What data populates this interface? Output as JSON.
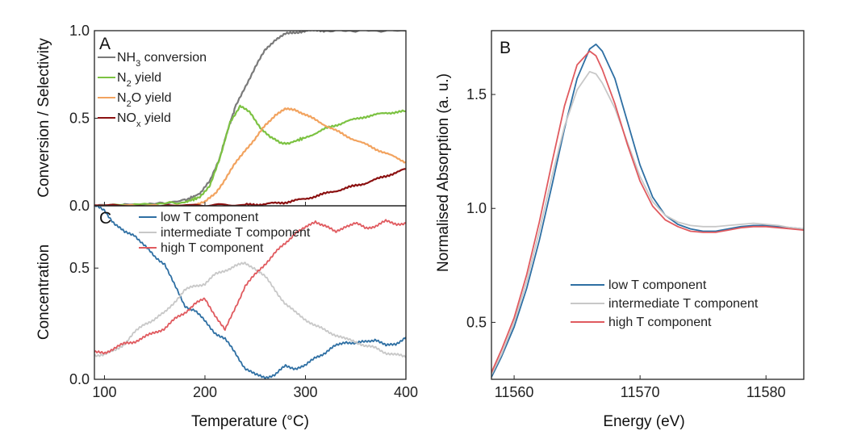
{
  "chart_data": [
    {
      "panel": "A",
      "type": "line",
      "xlabel": "Temperature (°C)",
      "ylabel": "Conversion / Selectivity",
      "xlim": [
        90,
        400
      ],
      "ylim": [
        0,
        1.0
      ],
      "yticks": [
        "0.0",
        "0.5",
        "1.0"
      ],
      "legend_position": "top-left",
      "series": [
        {
          "name": "NH3 conversion",
          "name_base": "NH",
          "name_sub": "3",
          "name_rest": " conversion",
          "color": "#7a7a7a",
          "x": [
            90,
            150,
            180,
            195,
            205,
            215,
            222,
            230,
            240,
            250,
            260,
            270,
            280,
            290,
            300,
            320,
            350,
            400
          ],
          "y": [
            0.0,
            0.01,
            0.03,
            0.07,
            0.14,
            0.28,
            0.42,
            0.56,
            0.68,
            0.79,
            0.89,
            0.95,
            0.98,
            0.99,
            1.0,
            1.0,
            1.0,
            1.0
          ]
        },
        {
          "name": "N2 yield",
          "name_base": "N",
          "name_sub": "2",
          "name_rest": " yield",
          "color": "#7cc242",
          "x": [
            90,
            150,
            180,
            195,
            205,
            215,
            225,
            235,
            245,
            255,
            265,
            275,
            285,
            300,
            320,
            340,
            360,
            380,
            400
          ],
          "y": [
            0.0,
            0.01,
            0.02,
            0.05,
            0.12,
            0.27,
            0.48,
            0.57,
            0.53,
            0.45,
            0.39,
            0.36,
            0.36,
            0.39,
            0.44,
            0.48,
            0.51,
            0.53,
            0.54
          ]
        },
        {
          "name": "N2O yield",
          "name_base": "N",
          "name_sub": "2",
          "name_rest": "O yield",
          "color": "#f2a35f",
          "x": [
            90,
            180,
            200,
            210,
            220,
            230,
            240,
            250,
            260,
            270,
            280,
            290,
            300,
            320,
            340,
            360,
            380,
            400
          ],
          "y": [
            0.0,
            0.0,
            0.02,
            0.07,
            0.15,
            0.24,
            0.32,
            0.38,
            0.46,
            0.52,
            0.55,
            0.55,
            0.52,
            0.46,
            0.4,
            0.35,
            0.3,
            0.25
          ]
        },
        {
          "name": "NOx yield",
          "name_base": "NO",
          "name_sub": "x",
          "name_rest": " yield",
          "color": "#8b1010",
          "x": [
            90,
            200,
            240,
            260,
            280,
            300,
            320,
            340,
            360,
            380,
            400
          ],
          "y": [
            0.0,
            0.0,
            0.005,
            0.01,
            0.02,
            0.04,
            0.07,
            0.1,
            0.13,
            0.17,
            0.21
          ]
        }
      ]
    },
    {
      "panel": "C",
      "type": "line",
      "xlabel": "Temperature (°C)",
      "ylabel": "Concentration",
      "xlim": [
        90,
        400
      ],
      "ylim": [
        0,
        0.78
      ],
      "yticks": [
        "0.0",
        "0.5"
      ],
      "xticks": [
        "100",
        "200",
        "300",
        "400"
      ],
      "legend_position": "top-center",
      "series": [
        {
          "name": "low T component",
          "color": "#2e6fa3",
          "x": [
            90,
            100,
            110,
            120,
            130,
            140,
            150,
            160,
            170,
            180,
            190,
            200,
            210,
            220,
            230,
            240,
            250,
            260,
            270,
            280,
            290,
            300,
            310,
            320,
            330,
            340,
            350,
            360,
            370,
            380,
            390,
            400
          ],
          "y": [
            0.78,
            0.76,
            0.7,
            0.66,
            0.65,
            0.6,
            0.55,
            0.52,
            0.42,
            0.33,
            0.31,
            0.26,
            0.21,
            0.18,
            0.12,
            0.05,
            0.02,
            0.01,
            0.02,
            0.06,
            0.05,
            0.06,
            0.1,
            0.12,
            0.15,
            0.17,
            0.16,
            0.17,
            0.18,
            0.15,
            0.16,
            0.19
          ]
        },
        {
          "name": "intermediate T component",
          "color": "#c8c8c8",
          "x": [
            90,
            100,
            110,
            120,
            130,
            140,
            150,
            160,
            170,
            180,
            190,
            200,
            210,
            220,
            230,
            240,
            250,
            260,
            270,
            280,
            290,
            300,
            310,
            320,
            330,
            340,
            350,
            360,
            370,
            380,
            390,
            400
          ],
          "y": [
            0.11,
            0.11,
            0.13,
            0.16,
            0.21,
            0.25,
            0.27,
            0.3,
            0.35,
            0.4,
            0.42,
            0.43,
            0.47,
            0.49,
            0.51,
            0.52,
            0.5,
            0.46,
            0.4,
            0.34,
            0.3,
            0.27,
            0.24,
            0.22,
            0.2,
            0.18,
            0.17,
            0.15,
            0.14,
            0.12,
            0.11,
            0.1
          ]
        },
        {
          "name": "high T component",
          "color": "#e05a5f",
          "x": [
            90,
            100,
            110,
            120,
            130,
            140,
            150,
            160,
            170,
            180,
            190,
            200,
            210,
            220,
            230,
            240,
            250,
            260,
            270,
            280,
            290,
            300,
            310,
            320,
            330,
            340,
            350,
            360,
            370,
            380,
            390,
            400
          ],
          "y": [
            0.12,
            0.12,
            0.14,
            0.16,
            0.17,
            0.19,
            0.21,
            0.23,
            0.27,
            0.3,
            0.34,
            0.36,
            0.29,
            0.22,
            0.32,
            0.42,
            0.47,
            0.52,
            0.57,
            0.61,
            0.66,
            0.68,
            0.71,
            0.69,
            0.66,
            0.69,
            0.7,
            0.68,
            0.69,
            0.71,
            0.7,
            0.7
          ]
        }
      ]
    },
    {
      "panel": "B",
      "type": "line",
      "xlabel": "Energy (eV)",
      "ylabel": "Normalised Absorption (a. u.)",
      "xlim": [
        11558.2,
        11583
      ],
      "ylim": [
        0.25,
        1.78
      ],
      "yticks": [
        "0.5",
        "1.0",
        "1.5"
      ],
      "xticks": [
        "11560",
        "11570",
        "11580"
      ],
      "legend_position": "bottom-center",
      "series": [
        {
          "name": "low T component",
          "color": "#2e6fa3",
          "x": [
            11558.2,
            11559,
            11560,
            11561,
            11562,
            11563,
            11564,
            11565,
            11566,
            11566.5,
            11567,
            11568,
            11569,
            11570,
            11571,
            11572,
            11573,
            11574,
            11575,
            11576,
            11577,
            11578,
            11579,
            11580,
            11581,
            11582,
            11583
          ],
          "y": [
            0.26,
            0.35,
            0.48,
            0.65,
            0.86,
            1.1,
            1.35,
            1.57,
            1.7,
            1.72,
            1.69,
            1.57,
            1.38,
            1.19,
            1.05,
            0.97,
            0.93,
            0.91,
            0.9,
            0.9,
            0.91,
            0.92,
            0.925,
            0.925,
            0.92,
            0.915,
            0.91
          ]
        },
        {
          "name": "intermediate T component",
          "color": "#c8c8c8",
          "x": [
            11558.2,
            11559,
            11560,
            11561,
            11562,
            11563,
            11564,
            11565,
            11566,
            11566.5,
            11567,
            11568,
            11569,
            11570,
            11571,
            11572,
            11573,
            11574,
            11575,
            11576,
            11577,
            11578,
            11579,
            11580,
            11581,
            11582,
            11583
          ],
          "y": [
            0.27,
            0.36,
            0.5,
            0.68,
            0.9,
            1.14,
            1.36,
            1.52,
            1.6,
            1.59,
            1.55,
            1.44,
            1.29,
            1.14,
            1.03,
            0.97,
            0.94,
            0.925,
            0.92,
            0.92,
            0.925,
            0.93,
            0.935,
            0.93,
            0.925,
            0.915,
            0.91
          ]
        },
        {
          "name": "high T component",
          "color": "#e05a5f",
          "x": [
            11558.2,
            11559,
            11560,
            11561,
            11562,
            11563,
            11564,
            11565,
            11566,
            11566.5,
            11567,
            11568,
            11569,
            11570,
            11571,
            11572,
            11573,
            11574,
            11575,
            11576,
            11577,
            11578,
            11579,
            11580,
            11581,
            11582,
            11583
          ],
          "y": [
            0.28,
            0.38,
            0.52,
            0.71,
            0.94,
            1.2,
            1.45,
            1.63,
            1.69,
            1.67,
            1.61,
            1.46,
            1.28,
            1.12,
            1.01,
            0.95,
            0.92,
            0.9,
            0.895,
            0.895,
            0.905,
            0.915,
            0.92,
            0.92,
            0.915,
            0.91,
            0.905
          ]
        }
      ]
    }
  ]
}
